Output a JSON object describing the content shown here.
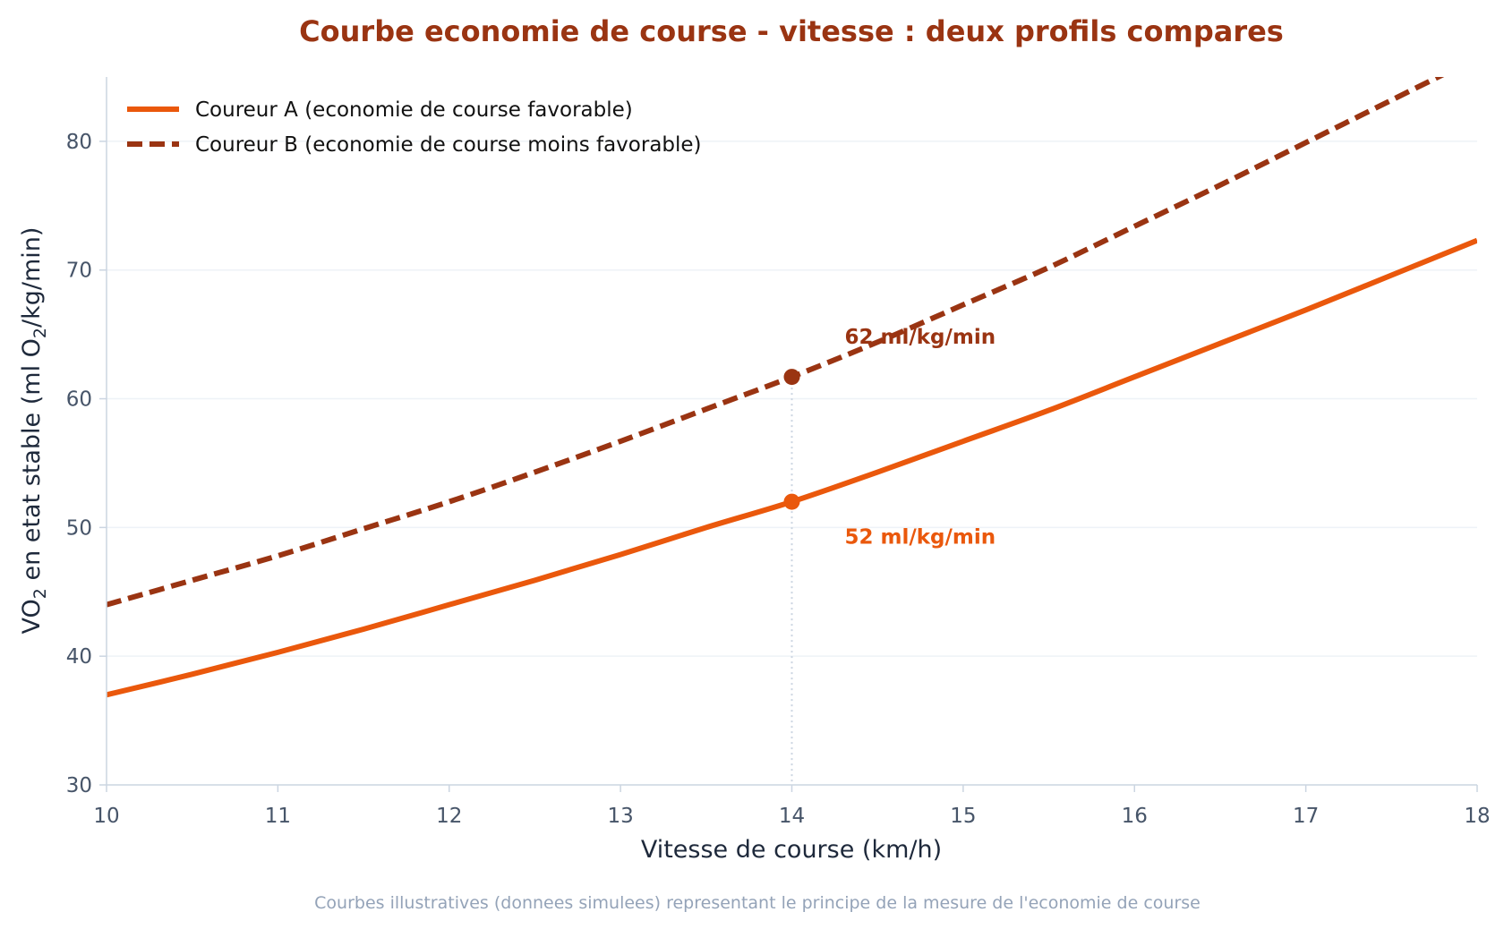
{
  "chart_data": {
    "type": "line",
    "title": "Courbe economie de course - vitesse : deux profils compares",
    "xlabel": "Vitesse de course (km/h)",
    "ylabel": {
      "prefix": "VO",
      "sub1": "2",
      "middle": " en etat stable (ml O",
      "sub2": "2",
      "suffix": "/kg/min)"
    },
    "xlim": [
      10,
      18
    ],
    "ylim": [
      30,
      85
    ],
    "x_ticks": [
      10,
      11,
      12,
      13,
      14,
      15,
      16,
      17,
      18
    ],
    "y_ticks": [
      30,
      40,
      50,
      60,
      70,
      80
    ],
    "grid": "horizontal",
    "legend_position": "top-left",
    "x": [
      10,
      10.5,
      11,
      11.5,
      12,
      12.5,
      13,
      13.5,
      14,
      14.5,
      15,
      15.5,
      16,
      16.5,
      17,
      17.5,
      18
    ],
    "series": [
      {
        "name": "Coureur A (economie de course favorable)",
        "color": "#ea580c",
        "style": "solid",
        "values": [
          37.0,
          38.6,
          40.3,
          42.1,
          44.0,
          45.9,
          47.9,
          50.0,
          52.0,
          54.3,
          56.7,
          59.1,
          61.7,
          64.3,
          66.9,
          69.6,
          72.3
        ]
      },
      {
        "name": "Coureur B (economie de course moins favorable)",
        "color": "#9a3412",
        "style": "dashed",
        "values": [
          44.0,
          45.9,
          47.8,
          49.9,
          52.0,
          54.3,
          56.7,
          59.2,
          61.7,
          64.4,
          67.3,
          70.2,
          73.4,
          76.6,
          79.9,
          83.2,
          86.5
        ]
      }
    ],
    "annotations": [
      {
        "x": 14,
        "y": 52,
        "label": "52 ml/kg/min",
        "color": "#ea580c"
      },
      {
        "x": 14,
        "y": 61.7,
        "label": "62 ml/kg/min",
        "color": "#9a3412"
      }
    ],
    "reference_line_x": 14,
    "footnote": "Courbes illustratives (donnees simulees) representant le principe de la mesure de l'economie de course"
  }
}
